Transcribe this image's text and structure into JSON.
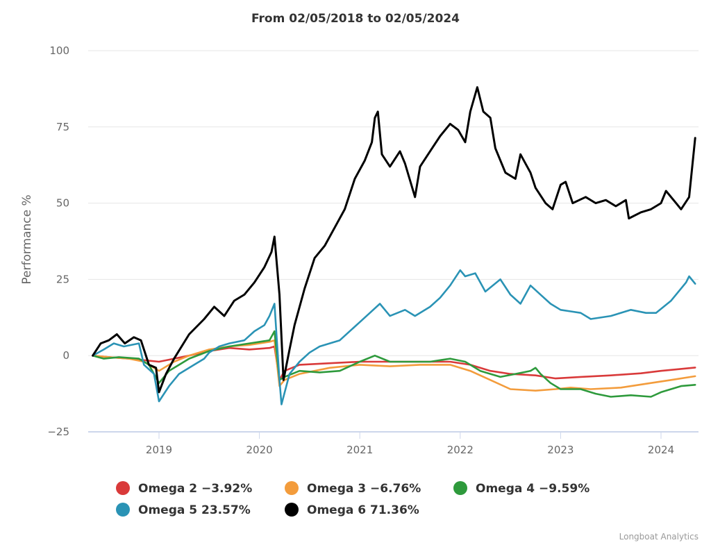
{
  "chart_data": {
    "type": "line",
    "title": "From 02/05/2018 to 02/05/2024",
    "xlabel": "",
    "ylabel": "Performance %",
    "ylim": [
      -25,
      100
    ],
    "xlim": [
      2018.34,
      2024.34
    ],
    "yticks": [
      -25,
      0,
      25,
      50,
      75,
      100
    ],
    "ytick_labels": [
      "−25",
      "0",
      "25",
      "50",
      "75",
      "100"
    ],
    "xticks": [
      2019,
      2020,
      2021,
      2022,
      2023,
      2024
    ],
    "xtick_labels": [
      "2019",
      "2020",
      "2021",
      "2022",
      "2023",
      "2024"
    ],
    "grid": true,
    "legend_position": "bottom-center",
    "credit": "Longboat Analytics",
    "series": [
      {
        "name": "Omega 2",
        "legend_label": "Omega 2 −3.92%",
        "final_value": -3.92,
        "color": "#d93a3a",
        "points": [
          [
            2018.34,
            0
          ],
          [
            2018.5,
            -0.5
          ],
          [
            2018.7,
            -1
          ],
          [
            2018.85,
            -1.5
          ],
          [
            2019.0,
            -2
          ],
          [
            2019.15,
            -1
          ],
          [
            2019.3,
            0
          ],
          [
            2019.5,
            1.5
          ],
          [
            2019.7,
            2.5
          ],
          [
            2019.9,
            2
          ],
          [
            2020.1,
            2.5
          ],
          [
            2020.15,
            3
          ],
          [
            2020.2,
            -8
          ],
          [
            2020.25,
            -5
          ],
          [
            2020.4,
            -3
          ],
          [
            2020.7,
            -2.5
          ],
          [
            2021.0,
            -2
          ],
          [
            2021.3,
            -2
          ],
          [
            2021.6,
            -2
          ],
          [
            2021.9,
            -2
          ],
          [
            2022.1,
            -3
          ],
          [
            2022.3,
            -5
          ],
          [
            2022.5,
            -6
          ],
          [
            2022.75,
            -6.5
          ],
          [
            2022.95,
            -7.5
          ],
          [
            2023.2,
            -7
          ],
          [
            2023.5,
            -6.5
          ],
          [
            2023.8,
            -5.8
          ],
          [
            2024.0,
            -5
          ],
          [
            2024.34,
            -3.92
          ]
        ]
      },
      {
        "name": "Omega 3",
        "legend_label": "Omega 3 −6.76%",
        "final_value": -6.76,
        "color": "#f39c3c",
        "points": [
          [
            2018.34,
            0
          ],
          [
            2018.5,
            -0.5
          ],
          [
            2018.7,
            -1
          ],
          [
            2018.85,
            -2
          ],
          [
            2019.0,
            -5
          ],
          [
            2019.15,
            -2
          ],
          [
            2019.3,
            0
          ],
          [
            2019.5,
            2
          ],
          [
            2019.7,
            3
          ],
          [
            2019.9,
            3.5
          ],
          [
            2020.1,
            4.5
          ],
          [
            2020.15,
            5
          ],
          [
            2020.2,
            -10
          ],
          [
            2020.25,
            -8
          ],
          [
            2020.4,
            -6
          ],
          [
            2020.7,
            -4
          ],
          [
            2021.0,
            -3
          ],
          [
            2021.3,
            -3.5
          ],
          [
            2021.6,
            -3
          ],
          [
            2021.9,
            -3
          ],
          [
            2022.1,
            -5
          ],
          [
            2022.3,
            -8
          ],
          [
            2022.5,
            -11
          ],
          [
            2022.75,
            -11.5
          ],
          [
            2022.95,
            -11
          ],
          [
            2023.1,
            -10.5
          ],
          [
            2023.3,
            -11
          ],
          [
            2023.6,
            -10.5
          ],
          [
            2023.9,
            -9
          ],
          [
            2024.1,
            -8
          ],
          [
            2024.34,
            -6.76
          ]
        ]
      },
      {
        "name": "Omega 4",
        "legend_label": "Omega 4 −9.59%",
        "final_value": -9.59,
        "color": "#2e9a3c",
        "points": [
          [
            2018.34,
            0
          ],
          [
            2018.45,
            -1
          ],
          [
            2018.6,
            -0.5
          ],
          [
            2018.8,
            -1
          ],
          [
            2018.9,
            -3
          ],
          [
            2019.0,
            -9
          ],
          [
            2019.1,
            -5
          ],
          [
            2019.3,
            -1
          ],
          [
            2019.5,
            1.5
          ],
          [
            2019.7,
            3
          ],
          [
            2019.9,
            4
          ],
          [
            2020.1,
            5
          ],
          [
            2020.15,
            8
          ],
          [
            2020.2,
            -8
          ],
          [
            2020.25,
            -7
          ],
          [
            2020.4,
            -5
          ],
          [
            2020.6,
            -5.5
          ],
          [
            2020.8,
            -5
          ],
          [
            2021.0,
            -2
          ],
          [
            2021.15,
            0
          ],
          [
            2021.3,
            -2
          ],
          [
            2021.5,
            -2
          ],
          [
            2021.7,
            -2
          ],
          [
            2021.9,
            -1
          ],
          [
            2022.05,
            -2
          ],
          [
            2022.2,
            -5
          ],
          [
            2022.4,
            -7
          ],
          [
            2022.55,
            -6
          ],
          [
            2022.7,
            -5
          ],
          [
            2022.75,
            -4
          ],
          [
            2022.8,
            -6
          ],
          [
            2022.9,
            -9
          ],
          [
            2023.0,
            -11
          ],
          [
            2023.2,
            -11
          ],
          [
            2023.35,
            -12.5
          ],
          [
            2023.5,
            -13.5
          ],
          [
            2023.7,
            -13
          ],
          [
            2023.9,
            -13.5
          ],
          [
            2024.0,
            -12
          ],
          [
            2024.2,
            -10
          ],
          [
            2024.34,
            -9.59
          ]
        ]
      },
      {
        "name": "Omega 5",
        "legend_label": "Omega 5 23.57%",
        "final_value": 23.57,
        "color": "#2a93b5",
        "points": [
          [
            2018.34,
            0
          ],
          [
            2018.45,
            2
          ],
          [
            2018.55,
            4
          ],
          [
            2018.65,
            3
          ],
          [
            2018.8,
            4
          ],
          [
            2018.85,
            -3
          ],
          [
            2018.95,
            -6
          ],
          [
            2019.0,
            -15
          ],
          [
            2019.1,
            -10
          ],
          [
            2019.2,
            -6
          ],
          [
            2019.35,
            -3
          ],
          [
            2019.45,
            -1
          ],
          [
            2019.5,
            1
          ],
          [
            2019.6,
            3
          ],
          [
            2019.7,
            4
          ],
          [
            2019.85,
            5
          ],
          [
            2019.95,
            8
          ],
          [
            2020.05,
            10
          ],
          [
            2020.1,
            13
          ],
          [
            2020.15,
            17
          ],
          [
            2020.2,
            -8
          ],
          [
            2020.22,
            -16
          ],
          [
            2020.3,
            -6
          ],
          [
            2020.4,
            -2
          ],
          [
            2020.5,
            1
          ],
          [
            2020.6,
            3
          ],
          [
            2020.7,
            4
          ],
          [
            2020.8,
            5
          ],
          [
            2020.9,
            8
          ],
          [
            2021.0,
            11
          ],
          [
            2021.1,
            14
          ],
          [
            2021.2,
            17
          ],
          [
            2021.3,
            13
          ],
          [
            2021.45,
            15
          ],
          [
            2021.55,
            13
          ],
          [
            2021.7,
            16
          ],
          [
            2021.8,
            19
          ],
          [
            2021.9,
            23
          ],
          [
            2022.0,
            28
          ],
          [
            2022.05,
            26
          ],
          [
            2022.15,
            27
          ],
          [
            2022.25,
            21
          ],
          [
            2022.4,
            25
          ],
          [
            2022.5,
            20
          ],
          [
            2022.6,
            17
          ],
          [
            2022.7,
            23
          ],
          [
            2022.8,
            20
          ],
          [
            2022.9,
            17
          ],
          [
            2023.0,
            15
          ],
          [
            2023.1,
            14.5
          ],
          [
            2023.2,
            14
          ],
          [
            2023.3,
            12
          ],
          [
            2023.5,
            13
          ],
          [
            2023.7,
            15
          ],
          [
            2023.85,
            14
          ],
          [
            2023.95,
            14
          ],
          [
            2024.1,
            18
          ],
          [
            2024.25,
            24
          ],
          [
            2024.28,
            26
          ],
          [
            2024.34,
            23.57
          ]
        ]
      },
      {
        "name": "Omega 6",
        "legend_label": "Omega 6 71.36%",
        "final_value": 71.36,
        "color": "#000000",
        "points": [
          [
            2018.34,
            0
          ],
          [
            2018.42,
            4
          ],
          [
            2018.5,
            5
          ],
          [
            2018.58,
            7
          ],
          [
            2018.66,
            4
          ],
          [
            2018.75,
            6
          ],
          [
            2018.82,
            5
          ],
          [
            2018.9,
            -3
          ],
          [
            2018.97,
            -4
          ],
          [
            2019.0,
            -12
          ],
          [
            2019.07,
            -6
          ],
          [
            2019.15,
            -1
          ],
          [
            2019.3,
            7
          ],
          [
            2019.45,
            12
          ],
          [
            2019.55,
            16
          ],
          [
            2019.65,
            13
          ],
          [
            2019.75,
            18
          ],
          [
            2019.85,
            20
          ],
          [
            2019.95,
            24
          ],
          [
            2020.05,
            29
          ],
          [
            2020.12,
            34
          ],
          [
            2020.15,
            39
          ],
          [
            2020.2,
            20
          ],
          [
            2020.24,
            -8
          ],
          [
            2020.3,
            2
          ],
          [
            2020.35,
            10
          ],
          [
            2020.45,
            22
          ],
          [
            2020.55,
            32
          ],
          [
            2020.65,
            36
          ],
          [
            2020.75,
            42
          ],
          [
            2020.85,
            48
          ],
          [
            2020.95,
            58
          ],
          [
            2021.05,
            64
          ],
          [
            2021.12,
            70
          ],
          [
            2021.15,
            78
          ],
          [
            2021.18,
            80
          ],
          [
            2021.22,
            66
          ],
          [
            2021.3,
            62
          ],
          [
            2021.4,
            67
          ],
          [
            2021.45,
            63
          ],
          [
            2021.55,
            52
          ],
          [
            2021.6,
            62
          ],
          [
            2021.7,
            67
          ],
          [
            2021.8,
            72
          ],
          [
            2021.9,
            76
          ],
          [
            2021.98,
            74
          ],
          [
            2022.05,
            70
          ],
          [
            2022.1,
            80
          ],
          [
            2022.17,
            88
          ],
          [
            2022.23,
            80
          ],
          [
            2022.3,
            78
          ],
          [
            2022.35,
            68
          ],
          [
            2022.45,
            60
          ],
          [
            2022.55,
            58
          ],
          [
            2022.6,
            66
          ],
          [
            2022.7,
            60
          ],
          [
            2022.75,
            55
          ],
          [
            2022.85,
            50
          ],
          [
            2022.92,
            48
          ],
          [
            2023.0,
            56
          ],
          [
            2023.05,
            57
          ],
          [
            2023.12,
            50
          ],
          [
            2023.25,
            52
          ],
          [
            2023.35,
            50
          ],
          [
            2023.45,
            51
          ],
          [
            2023.55,
            49
          ],
          [
            2023.65,
            51
          ],
          [
            2023.68,
            45
          ],
          [
            2023.8,
            47
          ],
          [
            2023.9,
            48
          ],
          [
            2024.0,
            50
          ],
          [
            2024.05,
            54
          ],
          [
            2024.15,
            50
          ],
          [
            2024.2,
            48
          ],
          [
            2024.28,
            52
          ],
          [
            2024.34,
            71.36
          ]
        ]
      }
    ]
  }
}
